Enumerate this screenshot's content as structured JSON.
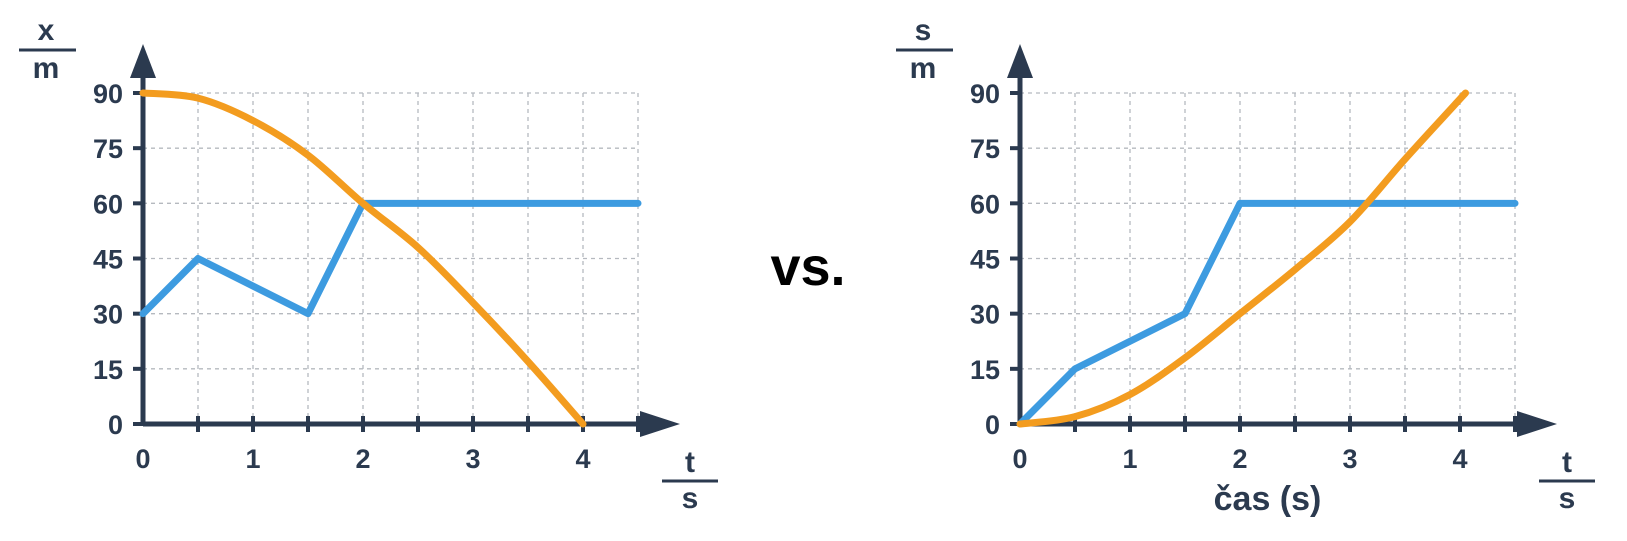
{
  "separator_text": "vs.",
  "colors": {
    "axis": "#2b3a4f",
    "grid": "#b5b9bf",
    "blue": "#3d9be0",
    "orange": "#f39c1f"
  },
  "chart_data": [
    {
      "type": "line",
      "y_unit": {
        "num": "x",
        "den": "m"
      },
      "x_unit": {
        "num": "t",
        "den": "s"
      },
      "xlabel": "",
      "xlim": [
        0,
        4.5
      ],
      "ylim": [
        0,
        90
      ],
      "x_ticks": [
        0,
        1,
        2,
        3,
        4
      ],
      "y_ticks": [
        0,
        15,
        30,
        45,
        60,
        75,
        90
      ],
      "x_minor_step": 0.5,
      "grid": true,
      "series": [
        {
          "color": "blue",
          "x": [
            0,
            0.5,
            1.5,
            2,
            4.5
          ],
          "y": [
            30,
            45,
            30,
            60,
            60
          ]
        },
        {
          "color": "orange",
          "x": [
            0,
            0.5,
            1,
            1.5,
            2,
            2.5,
            3,
            3.5,
            4
          ],
          "y": [
            90,
            88.6,
            82.5,
            73.1,
            60,
            48,
            33,
            17,
            0
          ]
        }
      ]
    },
    {
      "type": "line",
      "y_unit": {
        "num": "s",
        "den": "m"
      },
      "x_unit": {
        "num": "t",
        "den": "s"
      },
      "xlabel": "čas (s)",
      "xlim": [
        0,
        4.5
      ],
      "ylim": [
        0,
        90
      ],
      "x_ticks": [
        0,
        1,
        2,
        3,
        4
      ],
      "y_ticks": [
        0,
        15,
        30,
        45,
        60,
        75,
        90
      ],
      "x_minor_step": 0.5,
      "grid": true,
      "series": [
        {
          "color": "blue",
          "x": [
            0,
            0.5,
            1.5,
            2,
            4.5
          ],
          "y": [
            0,
            15,
            30,
            60,
            60
          ]
        },
        {
          "color": "orange",
          "x": [
            0,
            0.5,
            1,
            1.5,
            2,
            2.5,
            3,
            3.5,
            4.05
          ],
          "y": [
            0,
            2,
            8,
            18,
            30,
            42,
            55,
            72,
            90
          ]
        }
      ]
    }
  ]
}
